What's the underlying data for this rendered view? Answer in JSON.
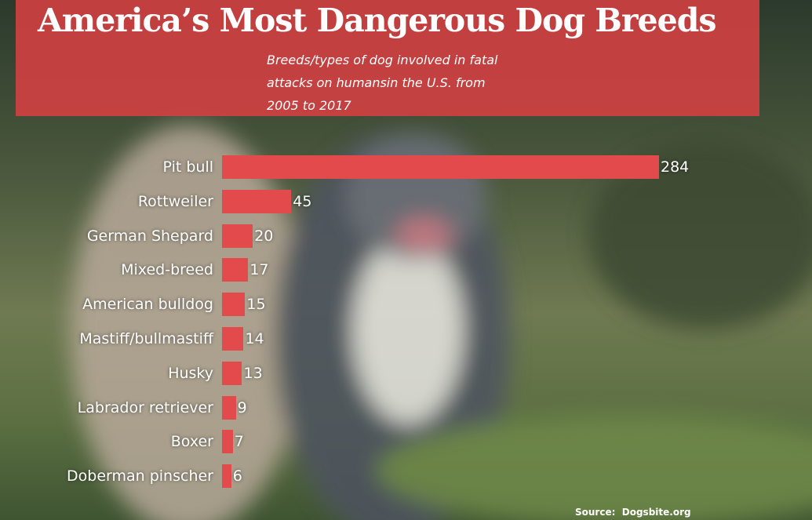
{
  "chart_data": {
    "type": "bar",
    "orientation": "horizontal",
    "title": "America’s Most Dangerous Dog Breeds",
    "subtitle": "Breeds/types of dog involved in fatal attacks on humansin the U.S. from 2005 to 2017",
    "categories": [
      "Pit bull",
      "Rottweiler",
      "German Shepard",
      "Mixed-breed",
      "American bulldog",
      "Mastiff/bullmastiff",
      "Husky",
      "Labrador retriever",
      "Boxer",
      "Doberman pinscher"
    ],
    "values": [
      284,
      45,
      20,
      17,
      15,
      14,
      13,
      9,
      7,
      6
    ],
    "color": "#e24a4c",
    "source": "Source:  Dogsbite.org"
  }
}
